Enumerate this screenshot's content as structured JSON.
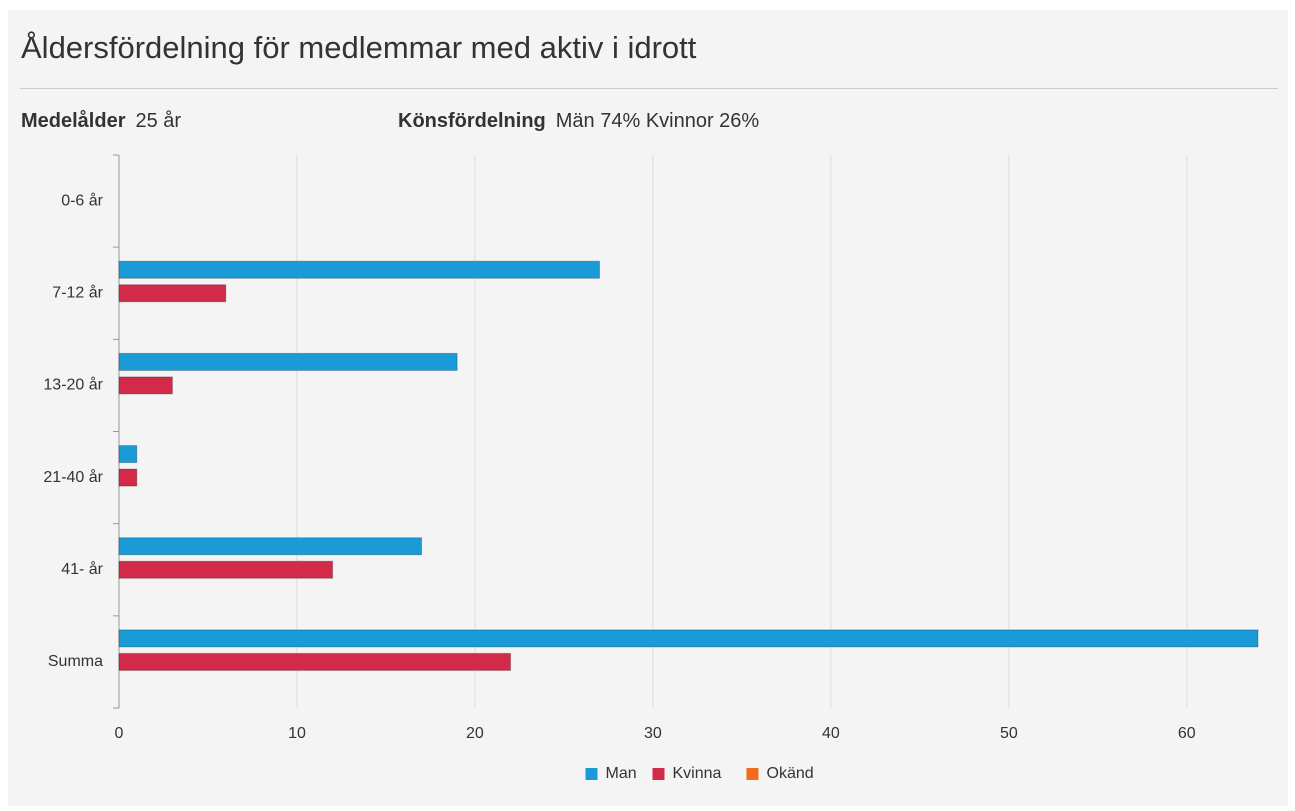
{
  "title": "Åldersfördelning för medlemmar med aktiv i idrott",
  "stats": [
    {
      "label": "Medelålder",
      "value": "25 år"
    },
    {
      "label": "Könsfördelning",
      "value": "Män 74% Kvinnor 26%"
    }
  ],
  "chart_data": {
    "type": "hbar",
    "categories": [
      "0-6 år",
      "7-12 år",
      "13-20 år",
      "21-40 år",
      "41- år",
      "Summa"
    ],
    "series": [
      {
        "name": "Man",
        "color": "#1a9bd7",
        "values": [
          0,
          27,
          19,
          1,
          17,
          64
        ]
      },
      {
        "name": "Kvinna",
        "color": "#d42a4a",
        "values": [
          0,
          6,
          3,
          1,
          12,
          22
        ]
      },
      {
        "name": "Okänd",
        "color": "#f26b1d",
        "values": [
          0,
          0,
          0,
          0,
          0,
          0
        ]
      }
    ],
    "xlim": [
      0,
      64
    ],
    "xticks": [
      0,
      10,
      20,
      30,
      40,
      50,
      60
    ],
    "grid": true,
    "legend": "bottom"
  }
}
